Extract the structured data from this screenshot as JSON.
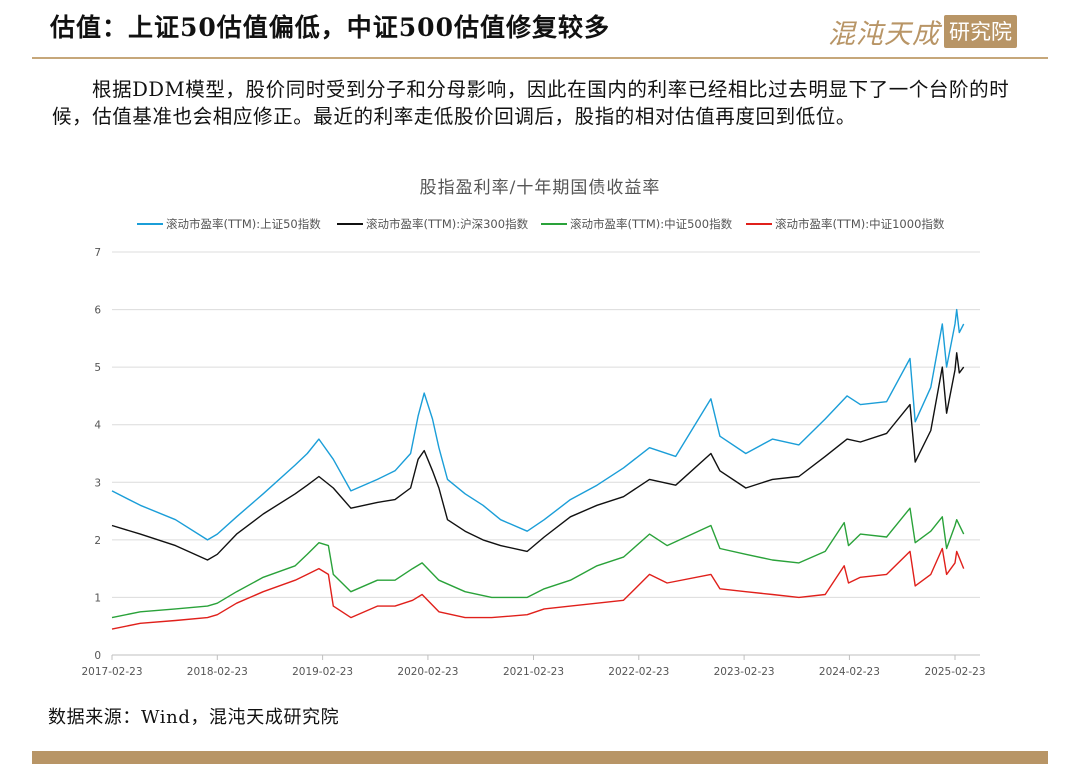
{
  "header": {
    "title": "估值：上证50估值偏低，中证500估值修复较多",
    "logo_script": "混沌天成",
    "logo_box": "研究院"
  },
  "body_text": "根据DDM模型，股价同时受到分子和分母影响，因此在国内的利率已经相比过去明显下了一个台阶的时候，估值基准也会相应修正。最近的利率走低股价回调后，股指的相对估值再度回到低位。",
  "source": "数据来源：Wind，混沌天成研究院",
  "colors": {
    "accent": "#b89566",
    "series_sz50": "#1b9ed8",
    "series_hs300": "#111111",
    "series_zz500": "#2aa23a",
    "series_zz1000": "#e0201b"
  },
  "chart_data": {
    "type": "line",
    "title": "股指盈利率/十年期国债收益率",
    "ylim": [
      0,
      7
    ],
    "yticks": [
      0,
      1,
      2,
      3,
      4,
      5,
      6,
      7
    ],
    "xlim": [
      "2017-02-23",
      "2025-03-31"
    ],
    "xticks": [
      "2017-02-23",
      "2018-02-23",
      "2019-02-23",
      "2020-02-23",
      "2021-02-23",
      "2022-02-23",
      "2023-02-23",
      "2024-02-23",
      "2025-02-23"
    ],
    "grid": "horizontal",
    "legend": "top",
    "series": [
      {
        "name": "滚动市盈率(TTM):上证50指数",
        "color": "#1b9ed8",
        "points": [
          [
            "2017-02-23",
            2.85
          ],
          [
            "2017-06-01",
            2.6
          ],
          [
            "2017-10-01",
            2.35
          ],
          [
            "2018-01-20",
            2.0
          ],
          [
            "2018-02-23",
            2.1
          ],
          [
            "2018-05-01",
            2.4
          ],
          [
            "2018-08-01",
            2.8
          ],
          [
            "2018-11-20",
            3.3
          ],
          [
            "2019-01-01",
            3.5
          ],
          [
            "2019-02-10",
            3.75
          ],
          [
            "2019-04-01",
            3.4
          ],
          [
            "2019-06-01",
            2.85
          ],
          [
            "2019-09-01",
            3.05
          ],
          [
            "2019-11-01",
            3.2
          ],
          [
            "2019-12-25",
            3.5
          ],
          [
            "2020-01-20",
            4.15
          ],
          [
            "2020-02-10",
            4.55
          ],
          [
            "2020-03-10",
            4.1
          ],
          [
            "2020-04-01",
            3.6
          ],
          [
            "2020-05-01",
            3.05
          ],
          [
            "2020-07-01",
            2.8
          ],
          [
            "2020-09-01",
            2.6
          ],
          [
            "2020-11-01",
            2.35
          ],
          [
            "2021-02-01",
            2.15
          ],
          [
            "2021-04-01",
            2.35
          ],
          [
            "2021-07-01",
            2.7
          ],
          [
            "2021-10-01",
            2.95
          ],
          [
            "2022-01-01",
            3.25
          ],
          [
            "2022-04-01",
            3.6
          ],
          [
            "2022-07-01",
            3.45
          ],
          [
            "2022-10-31",
            4.45
          ],
          [
            "2022-12-01",
            3.8
          ],
          [
            "2023-03-01",
            3.5
          ],
          [
            "2023-06-01",
            3.75
          ],
          [
            "2023-09-01",
            3.65
          ],
          [
            "2023-12-01",
            4.1
          ],
          [
            "2024-02-15",
            4.5
          ],
          [
            "2024-04-01",
            4.35
          ],
          [
            "2024-07-01",
            4.4
          ],
          [
            "2024-09-20",
            5.15
          ],
          [
            "2024-10-08",
            4.05
          ],
          [
            "2024-12-01",
            4.65
          ],
          [
            "2025-01-10",
            5.75
          ],
          [
            "2025-01-25",
            5.0
          ],
          [
            "2025-02-23",
            5.75
          ],
          [
            "2025-03-01",
            6.0
          ],
          [
            "2025-03-10",
            5.6
          ],
          [
            "2025-03-25",
            5.75
          ]
        ]
      },
      {
        "name": "滚动市盈率(TTM):沪深300指数",
        "color": "#111111",
        "points": [
          [
            "2017-02-23",
            2.25
          ],
          [
            "2017-06-01",
            2.1
          ],
          [
            "2017-10-01",
            1.9
          ],
          [
            "2018-01-20",
            1.65
          ],
          [
            "2018-02-23",
            1.75
          ],
          [
            "2018-05-01",
            2.1
          ],
          [
            "2018-08-01",
            2.45
          ],
          [
            "2018-11-20",
            2.8
          ],
          [
            "2019-01-01",
            2.95
          ],
          [
            "2019-02-10",
            3.1
          ],
          [
            "2019-04-01",
            2.9
          ],
          [
            "2019-06-01",
            2.55
          ],
          [
            "2019-09-01",
            2.65
          ],
          [
            "2019-11-01",
            2.7
          ],
          [
            "2019-12-25",
            2.9
          ],
          [
            "2020-01-20",
            3.4
          ],
          [
            "2020-02-10",
            3.55
          ],
          [
            "2020-03-10",
            3.2
          ],
          [
            "2020-04-01",
            2.9
          ],
          [
            "2020-05-01",
            2.35
          ],
          [
            "2020-07-01",
            2.15
          ],
          [
            "2020-09-01",
            2.0
          ],
          [
            "2020-11-01",
            1.9
          ],
          [
            "2021-02-01",
            1.8
          ],
          [
            "2021-04-01",
            2.05
          ],
          [
            "2021-07-01",
            2.4
          ],
          [
            "2021-10-01",
            2.6
          ],
          [
            "2022-01-01",
            2.75
          ],
          [
            "2022-04-01",
            3.05
          ],
          [
            "2022-07-01",
            2.95
          ],
          [
            "2022-10-31",
            3.5
          ],
          [
            "2022-12-01",
            3.2
          ],
          [
            "2023-03-01",
            2.9
          ],
          [
            "2023-06-01",
            3.05
          ],
          [
            "2023-09-01",
            3.1
          ],
          [
            "2023-12-01",
            3.45
          ],
          [
            "2024-02-15",
            3.75
          ],
          [
            "2024-04-01",
            3.7
          ],
          [
            "2024-07-01",
            3.85
          ],
          [
            "2024-09-20",
            4.35
          ],
          [
            "2024-10-08",
            3.35
          ],
          [
            "2024-12-01",
            3.9
          ],
          [
            "2025-01-10",
            5.0
          ],
          [
            "2025-01-25",
            4.2
          ],
          [
            "2025-02-23",
            4.95
          ],
          [
            "2025-03-01",
            5.25
          ],
          [
            "2025-03-10",
            4.9
          ],
          [
            "2025-03-25",
            5.0
          ]
        ]
      },
      {
        "name": "滚动市盈率(TTM):中证500指数",
        "color": "#2aa23a",
        "points": [
          [
            "2017-02-23",
            0.65
          ],
          [
            "2017-06-01",
            0.75
          ],
          [
            "2017-10-01",
            0.8
          ],
          [
            "2018-01-20",
            0.85
          ],
          [
            "2018-02-23",
            0.9
          ],
          [
            "2018-05-01",
            1.1
          ],
          [
            "2018-08-01",
            1.35
          ],
          [
            "2018-11-20",
            1.55
          ],
          [
            "2019-01-01",
            1.75
          ],
          [
            "2019-02-10",
            1.95
          ],
          [
            "2019-03-15",
            1.9
          ],
          [
            "2019-04-01",
            1.4
          ],
          [
            "2019-06-01",
            1.1
          ],
          [
            "2019-09-01",
            1.3
          ],
          [
            "2019-11-01",
            1.3
          ],
          [
            "2020-01-01",
            1.5
          ],
          [
            "2020-02-03",
            1.6
          ],
          [
            "2020-04-01",
            1.3
          ],
          [
            "2020-07-01",
            1.1
          ],
          [
            "2020-10-01",
            1.0
          ],
          [
            "2021-02-01",
            1.0
          ],
          [
            "2021-04-01",
            1.15
          ],
          [
            "2021-07-01",
            1.3
          ],
          [
            "2021-10-01",
            1.55
          ],
          [
            "2022-01-01",
            1.7
          ],
          [
            "2022-04-01",
            2.1
          ],
          [
            "2022-06-01",
            1.9
          ],
          [
            "2022-10-31",
            2.25
          ],
          [
            "2022-12-01",
            1.85
          ],
          [
            "2023-03-01",
            1.75
          ],
          [
            "2023-06-01",
            1.65
          ],
          [
            "2023-09-01",
            1.6
          ],
          [
            "2023-12-01",
            1.8
          ],
          [
            "2024-02-05",
            2.3
          ],
          [
            "2024-02-20",
            1.9
          ],
          [
            "2024-04-01",
            2.1
          ],
          [
            "2024-07-01",
            2.05
          ],
          [
            "2024-09-20",
            2.55
          ],
          [
            "2024-10-08",
            1.95
          ],
          [
            "2024-12-01",
            2.15
          ],
          [
            "2025-01-10",
            2.4
          ],
          [
            "2025-01-25",
            1.85
          ],
          [
            "2025-02-23",
            2.25
          ],
          [
            "2025-03-01",
            2.35
          ],
          [
            "2025-03-25",
            2.1
          ]
        ]
      },
      {
        "name": "滚动市盈率(TTM):中证1000指数",
        "color": "#e0201b",
        "points": [
          [
            "2017-02-23",
            0.45
          ],
          [
            "2017-06-01",
            0.55
          ],
          [
            "2017-10-01",
            0.6
          ],
          [
            "2018-01-20",
            0.65
          ],
          [
            "2018-02-23",
            0.7
          ],
          [
            "2018-05-01",
            0.9
          ],
          [
            "2018-08-01",
            1.1
          ],
          [
            "2018-11-20",
            1.3
          ],
          [
            "2019-01-01",
            1.4
          ],
          [
            "2019-02-10",
            1.5
          ],
          [
            "2019-03-15",
            1.4
          ],
          [
            "2019-04-01",
            0.85
          ],
          [
            "2019-06-01",
            0.65
          ],
          [
            "2019-09-01",
            0.85
          ],
          [
            "2019-11-01",
            0.85
          ],
          [
            "2020-01-01",
            0.95
          ],
          [
            "2020-02-03",
            1.05
          ],
          [
            "2020-04-01",
            0.75
          ],
          [
            "2020-07-01",
            0.65
          ],
          [
            "2020-10-01",
            0.65
          ],
          [
            "2021-02-01",
            0.7
          ],
          [
            "2021-04-01",
            0.8
          ],
          [
            "2021-07-01",
            0.85
          ],
          [
            "2021-10-01",
            0.9
          ],
          [
            "2022-01-01",
            0.95
          ],
          [
            "2022-04-01",
            1.4
          ],
          [
            "2022-06-01",
            1.25
          ],
          [
            "2022-10-31",
            1.4
          ],
          [
            "2022-12-01",
            1.15
          ],
          [
            "2023-03-01",
            1.1
          ],
          [
            "2023-06-01",
            1.05
          ],
          [
            "2023-09-01",
            1.0
          ],
          [
            "2023-12-01",
            1.05
          ],
          [
            "2024-02-05",
            1.55
          ],
          [
            "2024-02-20",
            1.25
          ],
          [
            "2024-04-01",
            1.35
          ],
          [
            "2024-07-01",
            1.4
          ],
          [
            "2024-09-20",
            1.8
          ],
          [
            "2024-10-08",
            1.2
          ],
          [
            "2024-12-01",
            1.4
          ],
          [
            "2025-01-10",
            1.85
          ],
          [
            "2025-01-25",
            1.4
          ],
          [
            "2025-02-23",
            1.6
          ],
          [
            "2025-03-01",
            1.8
          ],
          [
            "2025-03-25",
            1.5
          ]
        ]
      }
    ]
  }
}
